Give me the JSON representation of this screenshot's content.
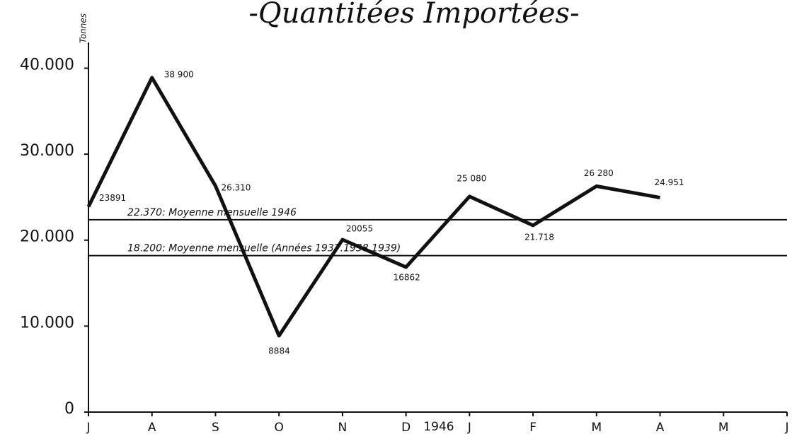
{
  "chart_data": {
    "type": "line",
    "title": "-Quantitées Importées-",
    "y_label": "Tonnes",
    "categories": [
      "J",
      "A",
      "S",
      "O",
      "N",
      "D",
      "J",
      "F",
      "M",
      "A",
      "M",
      "J"
    ],
    "annotations": [
      "1946"
    ],
    "series": [
      {
        "color": "#111111",
        "values": [
          23891,
          38900,
          26310,
          8884,
          20055,
          16862,
          25080,
          21718,
          26280,
          24951,
          null,
          null
        ],
        "value_labels": [
          "23891",
          "38 900",
          "26.310",
          "8884",
          "20055",
          "16862",
          "25 080",
          "21.718",
          "26 280",
          "24.951",
          null,
          null
        ]
      }
    ],
    "reference_lines": [
      {
        "value": 22370,
        "label": "22.370: Moyenne mensuelle 1946"
      },
      {
        "value": 18200,
        "label": "18.200: Moyenne mensuelle (Années 1937.1938.1939)"
      }
    ],
    "ylim": [
      0,
      43000
    ],
    "yticks": [
      0,
      {
        "value": 10000,
        "label": "10.000"
      },
      {
        "value": 20000,
        "label": "20.000"
      },
      {
        "value": 30000,
        "label": "30.000"
      },
      {
        "value": 40000,
        "label": "40.000"
      }
    ],
    "grid": false
  }
}
